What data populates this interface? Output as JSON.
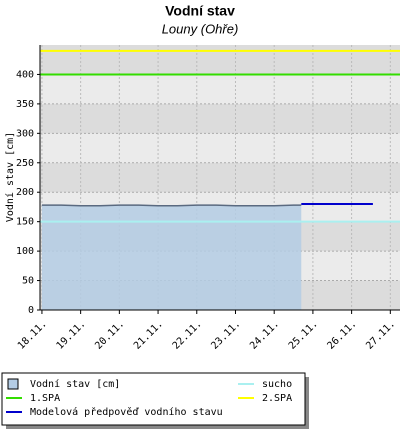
{
  "chart_data": {
    "type": "area",
    "title": "Vodní stav",
    "subtitle": "Louny (Ohře)",
    "y_label": "Vodní stav [cm]",
    "xlim": [
      17.95,
      27.25
    ],
    "ylim": [
      0,
      450
    ],
    "xticks": [
      {
        "value": 18,
        "label": "18.11."
      },
      {
        "value": 19,
        "label": "19.11."
      },
      {
        "value": 20,
        "label": "20.11."
      },
      {
        "value": 21,
        "label": "21.11."
      },
      {
        "value": 22,
        "label": "22.11."
      },
      {
        "value": 23,
        "label": "23.11."
      },
      {
        "value": 24,
        "label": "24.11."
      },
      {
        "value": 25,
        "label": "25.11."
      },
      {
        "value": 26,
        "label": "26.11."
      },
      {
        "value": 27,
        "label": "27.11."
      }
    ],
    "yticks": [
      0,
      50,
      100,
      150,
      200,
      250,
      300,
      350,
      400
    ],
    "grid": true,
    "series": [
      {
        "name": "Vodní stav [cm]",
        "color": "#b4cce4",
        "line_color": "#5a6a80",
        "x": [
          18,
          18.5,
          19,
          19.5,
          20,
          20.5,
          21,
          21.5,
          22,
          22.5,
          23,
          23.5,
          24,
          24.5,
          24.7
        ],
        "values": [
          178,
          178,
          177,
          177,
          178,
          178,
          177,
          177,
          178,
          178,
          177,
          177,
          177,
          178,
          178
        ]
      },
      {
        "name": "Modelová předpověď vodního stavu",
        "color": "#0000cc",
        "x": [
          24.7,
          26.55
        ],
        "values": [
          180,
          180
        ]
      }
    ],
    "levels": [
      {
        "name": "1.SPA",
        "value": 400,
        "color": "#33dd00"
      },
      {
        "name": "sucho",
        "value": 150,
        "color": "#aaf0f0"
      },
      {
        "name": "2.SPA",
        "value": 440,
        "color": "#ffff00"
      }
    ]
  }
}
